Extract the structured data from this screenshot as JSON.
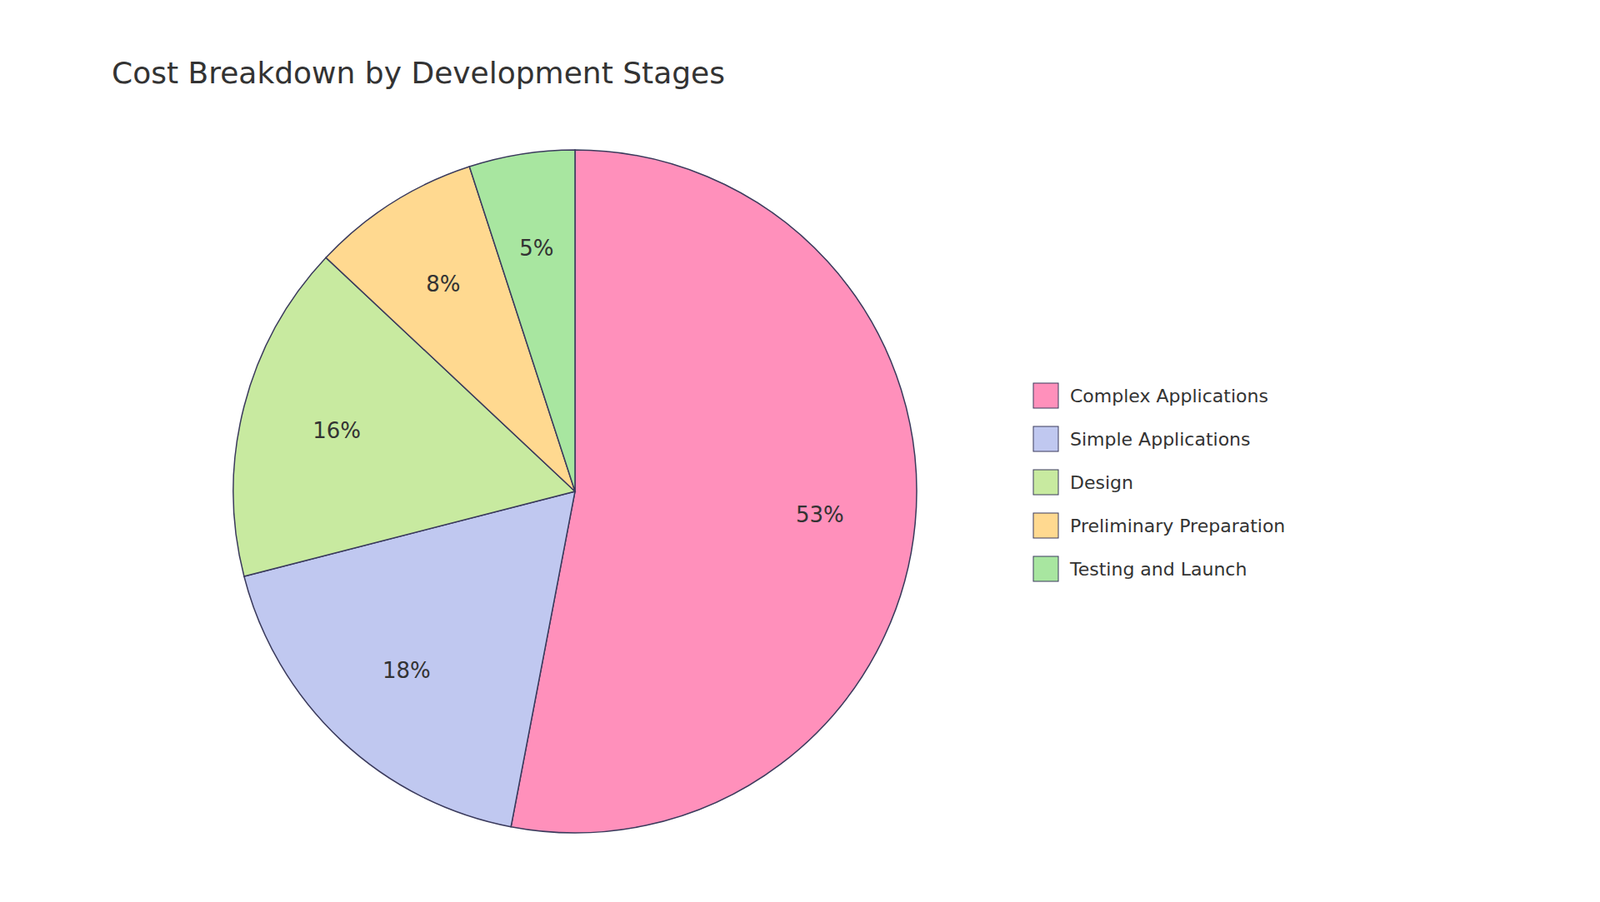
{
  "chart_data": {
    "type": "pie",
    "title": "Cost Breakdown by Development Stages",
    "labels": [
      "Complex Applications",
      "Simple Applications",
      "Design",
      "Preliminary Preparation",
      "Testing and Launch"
    ],
    "values": [
      53,
      18,
      16,
      8,
      5
    ],
    "value_labels": [
      "53%",
      "18%",
      "16%",
      "8%",
      "5%"
    ],
    "colors": [
      "#FF90BB",
      "#C0C8F0",
      "#C8EAA0",
      "#FFD990",
      "#A8E6A0"
    ],
    "data_labels": true,
    "legend": "right"
  }
}
